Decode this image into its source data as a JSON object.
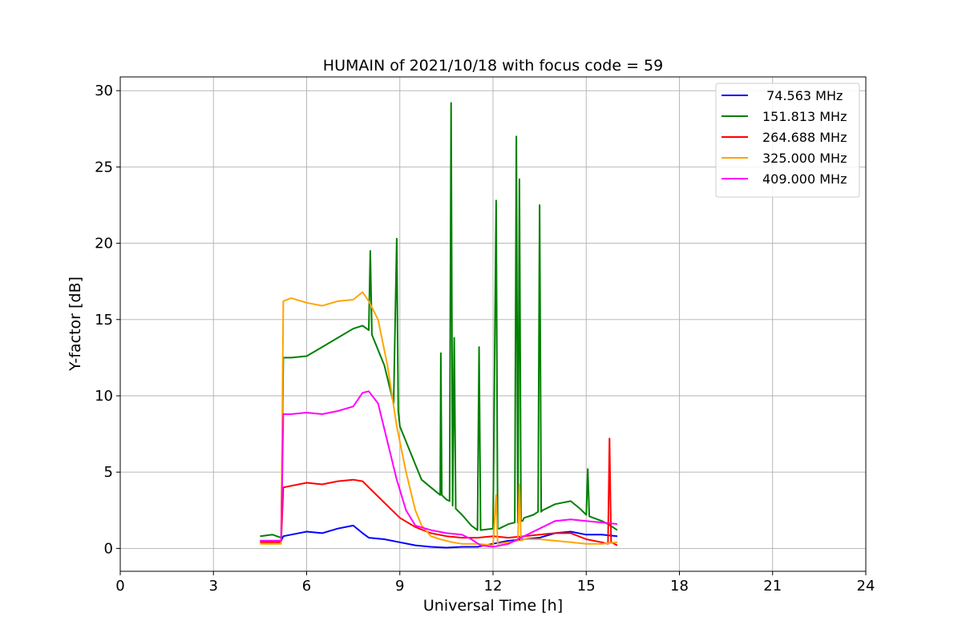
{
  "chart_data": {
    "type": "line",
    "title": "HUMAIN of 2021/10/18 with focus code = 59",
    "xlabel": "Universal Time [h]",
    "ylabel": "Y-factor [dB]",
    "xlim": [
      0,
      24
    ],
    "ylim": [
      -1.5,
      30.9
    ],
    "xticks": [
      0,
      3,
      6,
      9,
      12,
      15,
      18,
      21,
      24
    ],
    "yticks": [
      0,
      5,
      10,
      15,
      20,
      25,
      30
    ],
    "grid": true,
    "legend_position": "top-right",
    "series": [
      {
        "name": " 74.563 MHz",
        "color": "#0000ff",
        "x": [
          4.5,
          4.9,
          5.18,
          5.25,
          5.5,
          6.0,
          6.5,
          7.0,
          7.5,
          7.8,
          8.0,
          8.5,
          9.0,
          9.5,
          10.0,
          10.5,
          11.0,
          11.5,
          12.0,
          12.5,
          13.0,
          13.5,
          14.0,
          14.5,
          15.0,
          15.5,
          16.0
        ],
        "y": [
          0.5,
          0.5,
          0.5,
          0.8,
          0.9,
          1.1,
          1.0,
          1.3,
          1.5,
          1.0,
          0.7,
          0.6,
          0.4,
          0.2,
          0.1,
          0.05,
          0.1,
          0.1,
          0.3,
          0.5,
          0.6,
          0.7,
          1.0,
          1.1,
          0.9,
          0.9,
          0.8
        ]
      },
      {
        "name": "151.813 MHz",
        "color": "#008000",
        "x": [
          4.5,
          4.9,
          5.18,
          5.25,
          5.5,
          6.0,
          6.5,
          7.0,
          7.5,
          7.8,
          8.0,
          8.05,
          8.1,
          8.5,
          8.8,
          8.9,
          8.95,
          9.0,
          9.3,
          9.5,
          9.7,
          10.0,
          10.3,
          10.32,
          10.35,
          10.5,
          10.6,
          10.65,
          10.7,
          10.75,
          10.8,
          11.0,
          11.3,
          11.5,
          11.55,
          11.6,
          12.0,
          12.1,
          12.15,
          12.2,
          12.5,
          12.7,
          12.75,
          12.8,
          12.85,
          12.9,
          12.95,
          13.0,
          13.3,
          13.45,
          13.5,
          13.55,
          13.6,
          14.0,
          14.5,
          14.8,
          15.0,
          15.05,
          15.1,
          15.5,
          15.7,
          16.0
        ],
        "y": [
          0.8,
          0.9,
          0.7,
          12.5,
          12.5,
          12.6,
          13.2,
          13.8,
          14.4,
          14.6,
          14.3,
          19.5,
          14.0,
          12.0,
          9.5,
          20.3,
          9.0,
          8.0,
          6.5,
          5.5,
          4.5,
          4.0,
          3.5,
          12.8,
          3.5,
          3.2,
          3.1,
          29.2,
          2.8,
          13.8,
          2.6,
          2.2,
          1.5,
          1.2,
          13.2,
          1.2,
          1.3,
          22.8,
          1.3,
          1.3,
          1.6,
          1.7,
          27.0,
          1.7,
          24.2,
          1.8,
          1.8,
          2.0,
          2.2,
          2.4,
          22.5,
          2.4,
          2.5,
          2.9,
          3.1,
          2.6,
          2.2,
          5.2,
          2.1,
          1.8,
          1.6,
          1.2
        ]
      },
      {
        "name": "264.688 MHz",
        "color": "#ff0000",
        "x": [
          4.5,
          4.9,
          5.18,
          5.25,
          5.5,
          6.0,
          6.5,
          7.0,
          7.5,
          7.8,
          8.0,
          8.5,
          9.0,
          9.5,
          10.0,
          10.5,
          11.0,
          11.5,
          12.0,
          12.5,
          13.0,
          13.5,
          14.0,
          14.5,
          15.0,
          15.5,
          15.7,
          15.75,
          15.8,
          16.0
        ],
        "y": [
          0.4,
          0.4,
          0.4,
          4.0,
          4.1,
          4.3,
          4.2,
          4.4,
          4.5,
          4.4,
          4.0,
          3.0,
          2.0,
          1.4,
          1.0,
          0.8,
          0.7,
          0.7,
          0.8,
          0.7,
          0.8,
          0.9,
          1.0,
          1.0,
          0.6,
          0.4,
          0.3,
          7.2,
          0.4,
          0.2
        ]
      },
      {
        "name": "325.000 MHz",
        "color": "#ffa500",
        "x": [
          4.5,
          4.9,
          5.18,
          5.25,
          5.5,
          6.0,
          6.5,
          7.0,
          7.5,
          7.8,
          8.0,
          8.3,
          8.6,
          8.9,
          9.2,
          9.5,
          9.7,
          10.0,
          10.3,
          10.7,
          11.0,
          11.5,
          12.0,
          12.1,
          12.15,
          12.5,
          12.8,
          12.85,
          12.9,
          13.0,
          13.5,
          14.0,
          14.5,
          15.0,
          15.5,
          16.0
        ],
        "y": [
          0.3,
          0.3,
          0.3,
          16.2,
          16.4,
          16.1,
          15.9,
          16.2,
          16.3,
          16.8,
          16.2,
          15.0,
          12.0,
          8.0,
          5.0,
          2.5,
          1.5,
          0.8,
          0.6,
          0.4,
          0.3,
          0.3,
          0.2,
          3.5,
          0.3,
          0.4,
          0.5,
          4.2,
          0.5,
          0.6,
          0.6,
          0.5,
          0.4,
          0.3,
          0.3,
          0.4
        ]
      },
      {
        "name": "409.000 MHz",
        "color": "#ff00ff",
        "x": [
          4.5,
          4.9,
          5.18,
          5.25,
          5.5,
          6.0,
          6.5,
          7.0,
          7.5,
          7.8,
          8.0,
          8.3,
          8.6,
          8.9,
          9.2,
          9.5,
          10.0,
          10.5,
          11.0,
          11.3,
          11.6,
          12.0,
          12.5,
          13.0,
          13.5,
          14.0,
          14.5,
          15.0,
          15.5,
          16.0
        ],
        "y": [
          0.5,
          0.5,
          0.5,
          8.8,
          8.8,
          8.9,
          8.8,
          9.0,
          9.3,
          10.2,
          10.3,
          9.5,
          7.0,
          4.5,
          2.5,
          1.5,
          1.2,
          1.0,
          0.9,
          0.6,
          0.2,
          0.1,
          0.3,
          0.8,
          1.3,
          1.8,
          1.9,
          1.8,
          1.7,
          1.6
        ]
      }
    ]
  }
}
